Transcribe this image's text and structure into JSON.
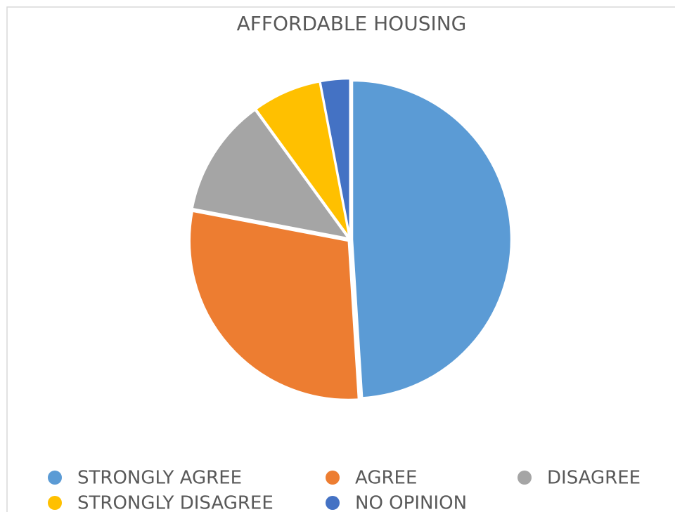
{
  "chart_data": {
    "type": "pie",
    "title": "AFFORDABLE HOUSING",
    "categories": [
      "STRONGLY AGREE",
      "AGREE",
      "DISAGREE",
      "STRONGLY DISAGREE",
      "NO OPINION"
    ],
    "values": [
      49,
      29,
      12,
      7,
      3
    ],
    "colors": [
      "#5b9bd5",
      "#ed7d31",
      "#a5a5a5",
      "#ffc000",
      "#4472c4"
    ],
    "legend": "bottom"
  }
}
